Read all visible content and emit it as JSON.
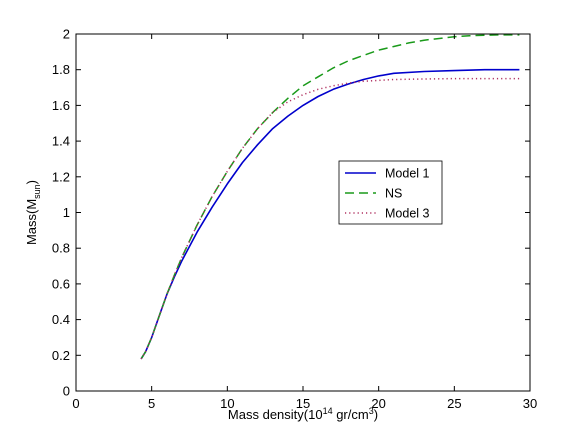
{
  "chart_data": {
    "type": "line",
    "title": "",
    "xlabel": {
      "prefix": "Mass density(10",
      "exp": "14",
      "mid": " gr/cm",
      "exp2": "3",
      "suffix": ")"
    },
    "ylabel": {
      "prefix": "Mass(M",
      "sub": "sun",
      "suffix": ")"
    },
    "xlim": [
      0,
      30
    ],
    "ylim": [
      0,
      2
    ],
    "xticks": [
      0,
      5,
      10,
      15,
      20,
      25,
      30
    ],
    "yticks": [
      0,
      0.2,
      0.4,
      0.6,
      0.8,
      1,
      1.2,
      1.4,
      1.6,
      1.8,
      2
    ],
    "xtick_labels": [
      "0",
      "5",
      "10",
      "15",
      "20",
      "25",
      "30"
    ],
    "ytick_labels": [
      "0",
      "0.2",
      "0.4",
      "0.6",
      "0.8",
      "1",
      "1.2",
      "1.4",
      "1.6",
      "1.8",
      "2"
    ],
    "grid": false,
    "legend_position": "center-right",
    "series": [
      {
        "name": "Model 1",
        "color": "#0000cc",
        "style": "solid",
        "x": [
          4.3,
          4.6,
          5.0,
          5.5,
          6.0,
          6.5,
          7.0,
          8.0,
          9.0,
          10.0,
          11.0,
          12.0,
          13.0,
          14.0,
          15.0,
          16.0,
          17.0,
          18.0,
          19.0,
          20.0,
          21.0,
          23.0,
          25.0,
          27.0,
          29.3
        ],
        "y": [
          0.18,
          0.22,
          0.3,
          0.42,
          0.54,
          0.64,
          0.73,
          0.89,
          1.03,
          1.16,
          1.28,
          1.38,
          1.47,
          1.54,
          1.6,
          1.65,
          1.69,
          1.72,
          1.745,
          1.765,
          1.78,
          1.79,
          1.795,
          1.8,
          1.8
        ]
      },
      {
        "name": "NS",
        "color": "#1a9a1a",
        "style": "dashed",
        "x": [
          4.3,
          4.6,
          5.0,
          5.5,
          6.0,
          6.5,
          7.0,
          8.0,
          9.0,
          10.0,
          11.0,
          12.0,
          13.0,
          14.0,
          15.0,
          16.0,
          17.0,
          18.0,
          19.0,
          20.0,
          21.0,
          22.0,
          23.0,
          24.0,
          25.0,
          26.0,
          27.0,
          28.0,
          29.3
        ],
        "y": [
          0.18,
          0.22,
          0.3,
          0.42,
          0.54,
          0.65,
          0.75,
          0.93,
          1.09,
          1.23,
          1.36,
          1.47,
          1.56,
          1.64,
          1.71,
          1.76,
          1.81,
          1.85,
          1.88,
          1.91,
          1.93,
          1.95,
          1.965,
          1.975,
          1.985,
          1.99,
          1.993,
          1.995,
          1.995
        ]
      },
      {
        "name": "Model 3",
        "color": "#b03060",
        "style": "dotted",
        "x": [
          4.3,
          4.6,
          5.0,
          5.5,
          6.0,
          6.5,
          7.0,
          8.0,
          9.0,
          10.0,
          11.0,
          12.0,
          13.0,
          14.0,
          15.0,
          16.0,
          17.0,
          18.0,
          19.0,
          20.0,
          21.0,
          23.0,
          25.0,
          27.0,
          29.3
        ],
        "y": [
          0.18,
          0.22,
          0.3,
          0.42,
          0.54,
          0.65,
          0.75,
          0.93,
          1.09,
          1.23,
          1.36,
          1.47,
          1.56,
          1.62,
          1.66,
          1.69,
          1.71,
          1.725,
          1.735,
          1.74,
          1.745,
          1.748,
          1.75,
          1.75,
          1.75
        ]
      }
    ]
  }
}
